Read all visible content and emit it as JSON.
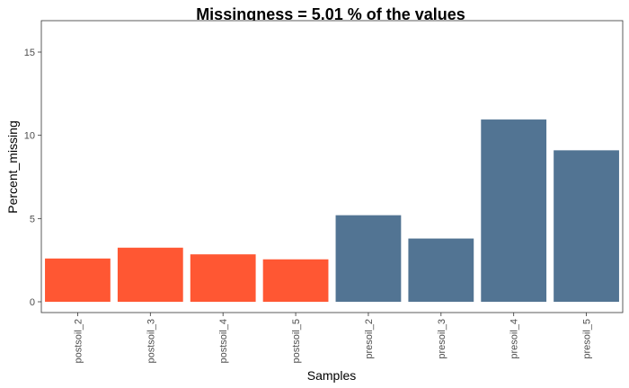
{
  "chart_data": {
    "type": "bar",
    "title": "Missingness =  5.01 % of the values",
    "xlabel": "Samples",
    "ylabel": "Percent_missing",
    "ylim": [
      0,
      16.7
    ],
    "yticks": [
      0,
      5,
      10,
      15
    ],
    "grid": false,
    "legend": "none",
    "categories": [
      "postsoil_2",
      "postsoil_3",
      "postsoil_4",
      "postsoil_5",
      "presoil_2",
      "presoil_3",
      "presoil_4",
      "presoil_5"
    ],
    "values": [
      2.6,
      3.25,
      2.85,
      2.55,
      5.2,
      3.8,
      10.95,
      9.1
    ],
    "colors": [
      "#FF5733",
      "#FF5733",
      "#FF5733",
      "#FF5733",
      "#527493",
      "#527493",
      "#527493",
      "#527493"
    ]
  }
}
